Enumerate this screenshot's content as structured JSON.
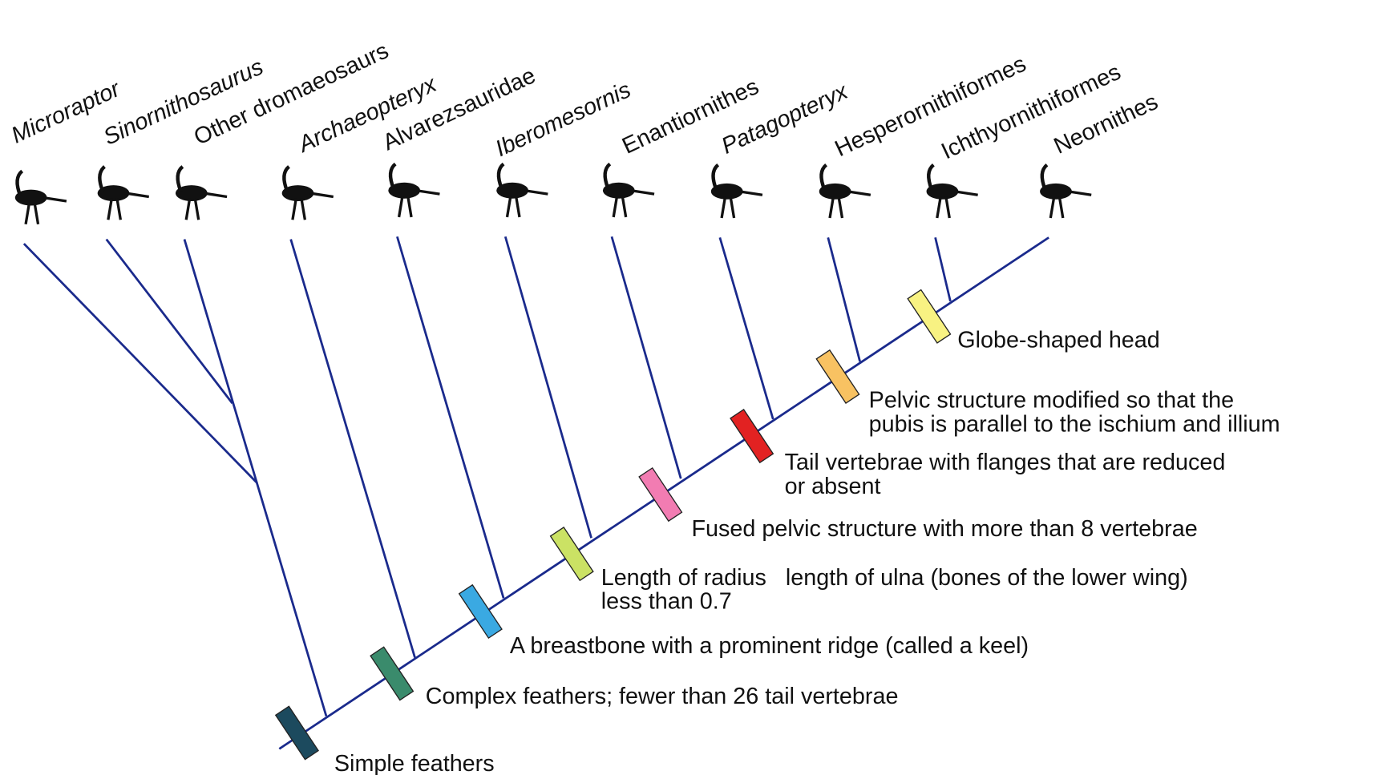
{
  "taxa": [
    {
      "label": "Microraptor",
      "italic": true
    },
    {
      "label": "Sinornithosaurus",
      "italic": true
    },
    {
      "label": "Other dromaeosaurs",
      "italic": false
    },
    {
      "label": "Archaeopteryx",
      "italic": true
    },
    {
      "label": "Alvarezsauridae",
      "italic": false
    },
    {
      "label": "Iberomesornis",
      "italic": true
    },
    {
      "label": "Enantiornithes",
      "italic": false
    },
    {
      "label": "Patagopteryx",
      "italic": true
    },
    {
      "label": "Hesperornithiformes",
      "italic": false
    },
    {
      "label": "Ichthyornithiformes",
      "italic": false
    },
    {
      "label": "Neornithes",
      "italic": false
    }
  ],
  "traits": [
    {
      "lines": [
        "Simple feathers"
      ],
      "color": "#1c4a5e"
    },
    {
      "lines": [
        "Complex feathers; fewer than 26 tail vertebrae"
      ],
      "color": "#3a8b6c"
    },
    {
      "lines": [
        "A breastbone with a prominent ridge (called a keel)"
      ],
      "color": "#3aa9e2"
    },
    {
      "lines": [
        "Length of radius   length of ulna (bones of the lower wing)",
        "less than 0.7"
      ],
      "color": "#cbe264"
    },
    {
      "lines": [
        "Fused pelvic structure with more than 8 vertebrae"
      ],
      "color": "#f27cb2"
    },
    {
      "lines": [
        "Tail vertebrae with flanges that are reduced",
        "or absent"
      ],
      "color": "#e22222"
    },
    {
      "lines": [
        "Pelvic structure modified so that the",
        "pubis is parallel to the ischium and illium"
      ],
      "color": "#f8c262"
    },
    {
      "lines": [
        "Globe-shaped head"
      ],
      "color": "#f8f282"
    }
  ]
}
